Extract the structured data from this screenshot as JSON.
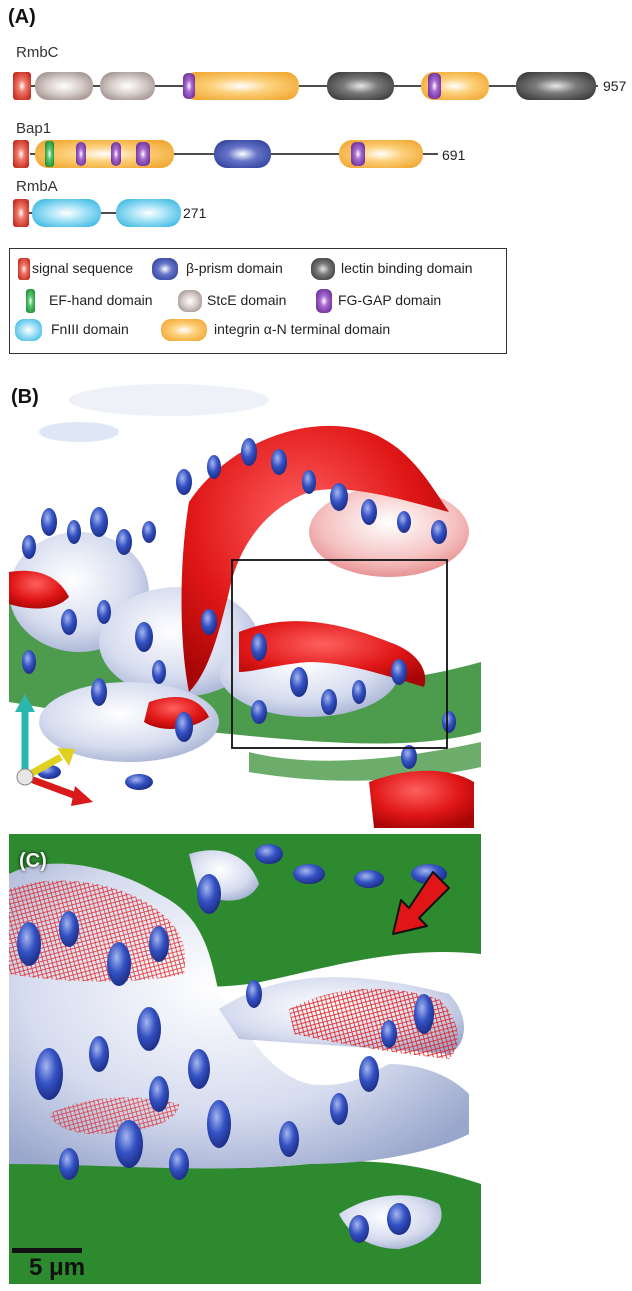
{
  "panel_a": {
    "label": "(A)",
    "proteins": [
      {
        "name": "RmbC",
        "length": "957"
      },
      {
        "name": "Bap1",
        "length": "691"
      },
      {
        "name": "RmbA",
        "length": "271"
      }
    ]
  },
  "legend": {
    "items": [
      {
        "label": "signal sequence",
        "icon": "signal-sequence-icon",
        "color": "#d9362b"
      },
      {
        "label": "β-prism domain",
        "icon": "beta-prism-icon",
        "color": "#3a4fb0"
      },
      {
        "label": "lectin binding domain",
        "icon": "lectin-binding-icon",
        "color": "#4a4a4a"
      },
      {
        "label": "EF-hand domain",
        "icon": "ef-hand-icon",
        "color": "#2faa4a"
      },
      {
        "label": "StcE domain",
        "icon": "stce-icon",
        "color": "#a89a96"
      },
      {
        "label": "FG-GAP domain",
        "icon": "fg-gap-icon",
        "color": "#7a3aa8"
      },
      {
        "label": "FnIII  domain",
        "icon": "fniii-icon",
        "color": "#4cc0e6"
      },
      {
        "label": "integrin α-N terminal domain",
        "icon": "integrin-icon",
        "color": "#f4b23a"
      }
    ]
  },
  "panel_b": {
    "label": "(B)"
  },
  "panel_c": {
    "label": "(C)",
    "scale_bar": "5 μm"
  }
}
